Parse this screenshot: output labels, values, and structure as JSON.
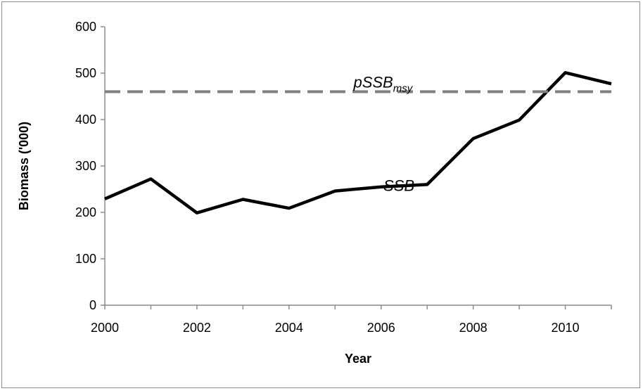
{
  "chart_data": {
    "type": "line",
    "title": "",
    "xlabel": "Year",
    "ylabel": "Biomass ('000)",
    "xlim": [
      2000,
      2011
    ],
    "ylim": [
      0,
      600
    ],
    "x_ticks": [
      "2000",
      "2002",
      "2004",
      "2006",
      "2008",
      "2010"
    ],
    "y_ticks": [
      "0",
      "100",
      "200",
      "300",
      "400",
      "500",
      "600"
    ],
    "grid": false,
    "legend": "none",
    "x": [
      2000,
      2001,
      2002,
      2003,
      2004,
      2005,
      2006,
      2007,
      2008,
      2009,
      2010,
      2011
    ],
    "series": [
      {
        "name": "SSB",
        "style": "solid",
        "color": "#000000",
        "values": [
          229,
          272,
          199,
          228,
          209,
          246,
          255,
          260,
          359,
          399,
          501,
          477
        ]
      },
      {
        "name": "pSSBmsy",
        "style": "dashed",
        "color": "#808080",
        "values": [
          460,
          460,
          460,
          460,
          460,
          460,
          460,
          460,
          460,
          460,
          460,
          460
        ]
      }
    ],
    "annotations": [
      {
        "text_main": "SSB",
        "x": 2006.05,
        "y": 255,
        "series": "SSB"
      },
      {
        "text_main": "pSSB",
        "text_sub": "msy",
        "x": 2005.4,
        "y": 460,
        "series": "pSSBmsy"
      }
    ]
  }
}
